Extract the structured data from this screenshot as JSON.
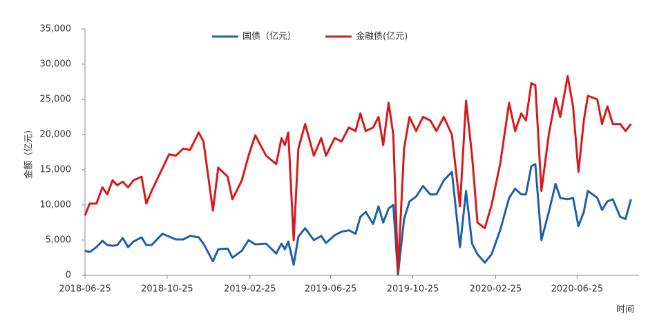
{
  "chart_data": {
    "type": "line",
    "x_label": "时间",
    "y_label": "金额（亿元）",
    "x": [
      "2018-06-25",
      "2018-07-02",
      "2018-07-12",
      "2018-07-21",
      "2018-07-28",
      "2018-08-05",
      "2018-08-12",
      "2018-08-20",
      "2018-08-28",
      "2018-09-05",
      "2018-09-17",
      "2018-09-24",
      "2018-10-02",
      "2018-10-18",
      "2018-10-28",
      "2018-11-07",
      "2018-11-18",
      "2018-11-28",
      "2018-12-11",
      "2018-12-18",
      "2019-01-01",
      "2019-01-09",
      "2019-01-23",
      "2019-01-30",
      "2019-02-13",
      "2019-02-23",
      "2019-03-05",
      "2019-03-21",
      "2019-04-05",
      "2019-04-13",
      "2019-04-18",
      "2019-04-23",
      "2019-05-01",
      "2019-05-08",
      "2019-05-18",
      "2019-05-31",
      "2019-06-11",
      "2019-06-18",
      "2019-07-01",
      "2019-07-11",
      "2019-07-22",
      "2019-08-01",
      "2019-08-08",
      "2019-08-16",
      "2019-08-27",
      "2019-09-04",
      "2019-09-11",
      "2019-09-19",
      "2019-09-26",
      "2019-10-03",
      "2019-10-12",
      "2019-10-20",
      "2019-10-30",
      "2019-11-09",
      "2019-11-20",
      "2019-11-29",
      "2019-12-10",
      "2019-12-22",
      "2020-01-03",
      "2020-01-12",
      "2020-01-21",
      "2020-01-29",
      "2020-02-09",
      "2020-02-19",
      "2020-03-03",
      "2020-03-16",
      "2020-03-25",
      "2020-04-03",
      "2020-04-10",
      "2020-04-18",
      "2020-04-24",
      "2020-05-03",
      "2020-05-14",
      "2020-05-24",
      "2020-05-31",
      "2020-06-11",
      "2020-06-19",
      "2020-06-27",
      "2020-07-05",
      "2020-07-11",
      "2020-07-25",
      "2020-08-01",
      "2020-08-09",
      "2020-08-17",
      "2020-08-28",
      "2020-09-05",
      "2020-09-13"
    ],
    "series": [
      {
        "name": "国债（亿元）",
        "color": "#1f5fa8",
        "values": [
          3500,
          3300,
          4000,
          4900,
          4300,
          4200,
          4300,
          5300,
          4000,
          4800,
          5400,
          4300,
          4300,
          5900,
          5500,
          5100,
          5100,
          5600,
          5400,
          4500,
          2000,
          3700,
          3800,
          2500,
          3500,
          5000,
          4400,
          4500,
          3100,
          4500,
          3700,
          4800,
          1500,
          5500,
          6700,
          5000,
          5600,
          4600,
          5700,
          6200,
          6400,
          5900,
          8300,
          9000,
          7300,
          9800,
          7500,
          9500,
          10000,
          100,
          8000,
          10500,
          11200,
          12700,
          11500,
          11500,
          13500,
          14700,
          4000,
          12000,
          4500,
          3000,
          1800,
          3000,
          6500,
          11000,
          12300,
          11500,
          11500,
          15500,
          15800,
          5000,
          9000,
          13000,
          11000,
          10800,
          11000,
          7000,
          9000,
          12000,
          11000,
          9300,
          10500,
          10800,
          8300,
          8000,
          10800
        ]
      },
      {
        "name": "金融债(亿元)",
        "color": "#d7191c",
        "values": [
          8500,
          10200,
          10200,
          12500,
          11500,
          13500,
          12800,
          13300,
          12500,
          13500,
          14000,
          10200,
          12000,
          15200,
          17200,
          17000,
          18000,
          17800,
          20300,
          19000,
          9200,
          15300,
          14000,
          10800,
          13500,
          17000,
          19900,
          17000,
          15800,
          19500,
          18500,
          20300,
          5000,
          18000,
          21500,
          17000,
          19500,
          17000,
          19500,
          19000,
          21000,
          20500,
          23000,
          20500,
          21000,
          22500,
          18500,
          24500,
          20000,
          500,
          18000,
          22500,
          20500,
          22500,
          22000,
          20500,
          22500,
          20000,
          9800,
          24800,
          17000,
          7500,
          6700,
          10000,
          16000,
          24500,
          20500,
          23000,
          22000,
          27300,
          27000,
          12000,
          20000,
          25200,
          22500,
          28300,
          24000,
          14700,
          22000,
          25500,
          25000,
          21500,
          24000,
          21500,
          21500,
          20500,
          21500
        ]
      }
    ],
    "xlim": [
      "2018-06-25",
      "2020-09-25"
    ],
    "xticks": [
      "2018-06-25",
      "2018-10-25",
      "2019-02-25",
      "2019-06-25",
      "2019-10-25",
      "2020-02-25",
      "2020-06-25"
    ],
    "ylim": [
      0,
      35000
    ],
    "yticks": [
      0,
      {
        "value": 5000,
        "label": "5,000"
      },
      {
        "value": 10000,
        "label": "10,000"
      },
      {
        "value": 15000,
        "label": "15,000"
      },
      {
        "value": 20000,
        "label": "20,000"
      },
      {
        "value": 25000,
        "label": "25,000"
      },
      {
        "value": 30000,
        "label": "30,000"
      },
      {
        "value": 35000,
        "label": "35,000"
      }
    ],
    "grid": false,
    "legend": "top"
  }
}
